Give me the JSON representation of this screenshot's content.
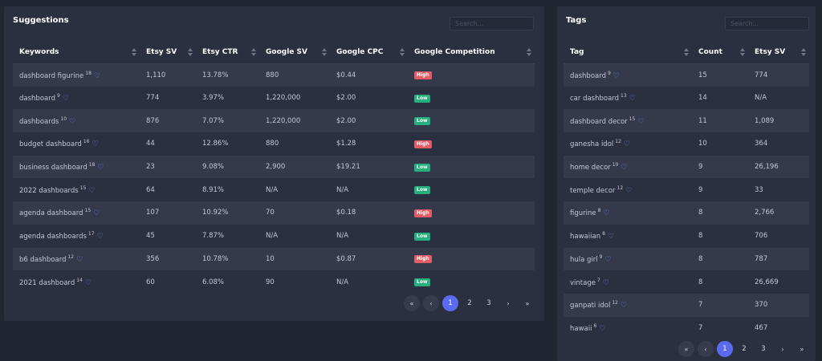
{
  "suggestions": {
    "title": "Suggestions",
    "search_placeholder": "Search...",
    "columns": [
      "Keywords",
      "Etsy SV",
      "Etsy CTR",
      "Google SV",
      "Google CPC",
      "Google Competition"
    ],
    "rows": [
      {
        "keyword": "dashboard figurine",
        "count": "18",
        "etsy_sv": "1,110",
        "etsy_ctr": "13.78%",
        "google_sv": "880",
        "google_cpc": "$0.44",
        "competition": "High"
      },
      {
        "keyword": "dashboard",
        "count": "9",
        "etsy_sv": "774",
        "etsy_ctr": "3.97%",
        "google_sv": "1,220,000",
        "google_cpc": "$2.00",
        "competition": "Low"
      },
      {
        "keyword": "dashboards",
        "count": "10",
        "etsy_sv": "876",
        "etsy_ctr": "7.07%",
        "google_sv": "1,220,000",
        "google_cpc": "$2.00",
        "competition": "Low"
      },
      {
        "keyword": "budget dashboard",
        "count": "16",
        "etsy_sv": "44",
        "etsy_ctr": "12.86%",
        "google_sv": "880",
        "google_cpc": "$1.28",
        "competition": "High"
      },
      {
        "keyword": "business dashboard",
        "count": "18",
        "etsy_sv": "23",
        "etsy_ctr": "9.08%",
        "google_sv": "2,900",
        "google_cpc": "$19.21",
        "competition": "Low"
      },
      {
        "keyword": "2022 dashboards",
        "count": "15",
        "etsy_sv": "64",
        "etsy_ctr": "8.91%",
        "google_sv": "N/A",
        "google_cpc": "N/A",
        "competition": "Low"
      },
      {
        "keyword": "agenda dashboard",
        "count": "15",
        "etsy_sv": "107",
        "etsy_ctr": "10.92%",
        "google_sv": "70",
        "google_cpc": "$0.18",
        "competition": "High"
      },
      {
        "keyword": "agenda dashboards",
        "count": "17",
        "etsy_sv": "45",
        "etsy_ctr": "7.87%",
        "google_sv": "N/A",
        "google_cpc": "N/A",
        "competition": "Low"
      },
      {
        "keyword": "b6 dashboard",
        "count": "12",
        "etsy_sv": "356",
        "etsy_ctr": "10.78%",
        "google_sv": "10",
        "google_cpc": "$0.87",
        "competition": "High"
      },
      {
        "keyword": "2021 dashboard",
        "count": "14",
        "etsy_sv": "60",
        "etsy_ctr": "6.08%",
        "google_sv": "90",
        "google_cpc": "N/A",
        "competition": "Low"
      }
    ],
    "pagination": {
      "first": "«",
      "prev": "‹",
      "pages": [
        "1",
        "2",
        "3"
      ],
      "active": "1",
      "next": "›",
      "last": "»"
    }
  },
  "tags": {
    "title": "Tags",
    "search_placeholder": "Search...",
    "columns": [
      "Tag",
      "Count",
      "Etsy SV"
    ],
    "rows": [
      {
        "tag": "dashboard",
        "sup": "9",
        "count": "15",
        "etsy_sv": "774"
      },
      {
        "tag": "car dashboard",
        "sup": "13",
        "count": "14",
        "etsy_sv": "N/A"
      },
      {
        "tag": "dashboard decor",
        "sup": "15",
        "count": "11",
        "etsy_sv": "1,089"
      },
      {
        "tag": "ganesha idol",
        "sup": "12",
        "count": "10",
        "etsy_sv": "364"
      },
      {
        "tag": "home decor",
        "sup": "10",
        "count": "9",
        "etsy_sv": "26,196"
      },
      {
        "tag": "temple decor",
        "sup": "12",
        "count": "9",
        "etsy_sv": "33"
      },
      {
        "tag": "figurine",
        "sup": "8",
        "count": "8",
        "etsy_sv": "2,766"
      },
      {
        "tag": "hawaiian",
        "sup": "8",
        "count": "8",
        "etsy_sv": "706"
      },
      {
        "tag": "hula girl",
        "sup": "9",
        "count": "8",
        "etsy_sv": "787"
      },
      {
        "tag": "vintage",
        "sup": "7",
        "count": "8",
        "etsy_sv": "26,669"
      },
      {
        "tag": "ganpati idol",
        "sup": "12",
        "count": "7",
        "etsy_sv": "370"
      },
      {
        "tag": "hawaii",
        "sup": "6",
        "count": "7",
        "etsy_sv": "467"
      }
    ],
    "pagination": {
      "first": "«",
      "prev": "‹",
      "pages": [
        "1",
        "2",
        "3"
      ],
      "active": "1",
      "next": "›",
      "last": "»"
    }
  },
  "icons": {
    "favorite": "heart-outline-icon",
    "sort": "sort-arrows-icon"
  },
  "colors": {
    "background": "#222633",
    "panel": "#2b3040",
    "accent": "#5b6bf0",
    "heart": "#5a8dee",
    "high": "#e05d67",
    "low": "#27b07d"
  }
}
